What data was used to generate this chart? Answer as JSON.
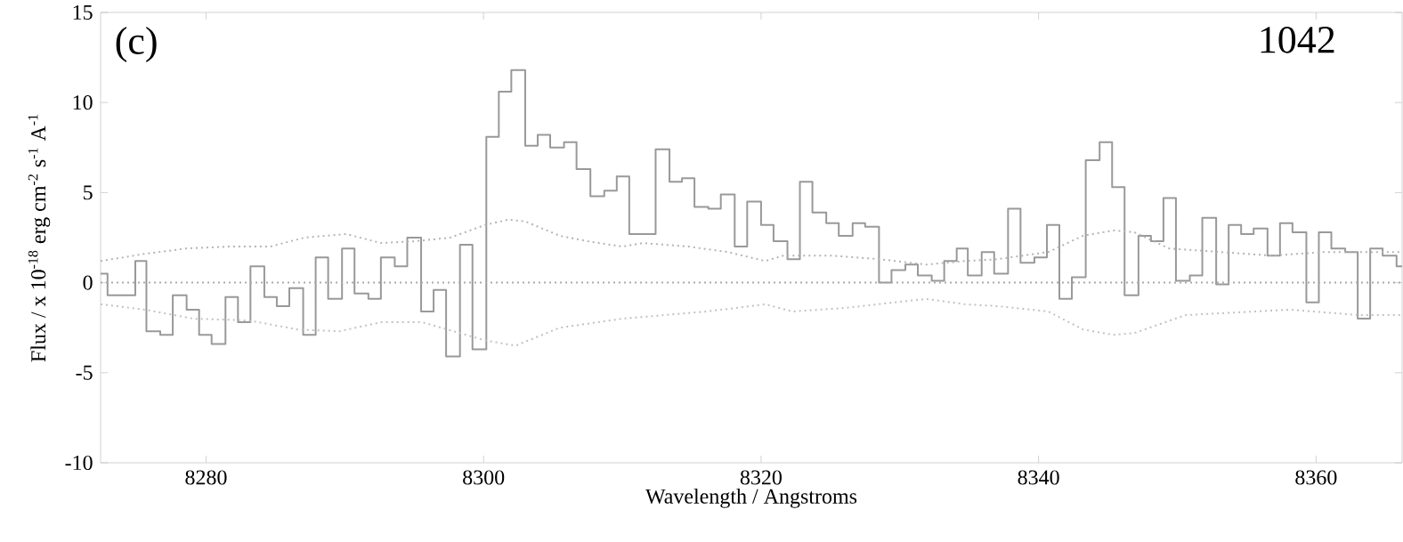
{
  "chart_data": {
    "type": "step",
    "xlabel": "Wavelength / Angstroms",
    "ylabel": "Flux / x 10$^{-18}$ erg cm$^{-2}$ s$^{-1}$ A$^{-1}$",
    "annotations": [
      "(c)",
      "1042"
    ],
    "xlim": [
      8272.4,
      8366.2
    ],
    "ylim": [
      -10,
      15
    ],
    "xticks": [
      8280,
      8300,
      8320,
      8340,
      8360
    ],
    "yticks": [
      -10,
      -5,
      0,
      5,
      10,
      15
    ],
    "ref_lines": [
      {
        "axis": "y",
        "value": 0,
        "color": "#aaaaaa",
        "line_style": "dotted"
      }
    ],
    "series": [
      {
        "color": "#999999",
        "line_style": "solid",
        "x": [
          8272.4,
          8272.9,
          8274.9,
          8275.7,
          8276.7,
          8277.6,
          8278.6,
          8279.5,
          8280.4,
          8281.4,
          8282.3,
          8283.2,
          8284.2,
          8285.1,
          8286.0,
          8287.0,
          8287.9,
          8288.8,
          8289.8,
          8290.7,
          8291.7,
          8292.6,
          8293.6,
          8294.5,
          8295.5,
          8296.4,
          8297.3,
          8298.3,
          8299.2,
          8300.2,
          8301.1,
          8302.0,
          8303.0,
          8303.9,
          8304.8,
          8305.8,
          8306.7,
          8307.7,
          8308.7,
          8309.6,
          8310.5,
          8311.5,
          8312.4,
          8313.4,
          8314.3,
          8315.2,
          8316.2,
          8317.1,
          8318.1,
          8319.0,
          8320.0,
          8320.9,
          8321.9,
          8322.8,
          8323.7,
          8324.7,
          8325.6,
          8326.6,
          8327.5,
          8328.5,
          8329.4,
          8330.4,
          8331.3,
          8332.3,
          8333.2,
          8334.1,
          8334.9,
          8335.9,
          8336.8,
          8337.8,
          8338.7,
          8339.7,
          8340.6,
          8341.5,
          8342.4,
          8343.4,
          8344.4,
          8345.3,
          8346.2,
          8347.2,
          8348.1,
          8349.0,
          8349.9,
          8350.9,
          8351.8,
          8352.8,
          8353.7,
          8354.6,
          8355.5,
          8356.5,
          8357.4,
          8358.3,
          8359.3,
          8360.2,
          8361.1,
          8362.1,
          8363.0,
          8363.9,
          8364.8,
          8365.8
        ],
        "values": [
          0.5,
          -0.7,
          1.2,
          -2.7,
          -2.9,
          -0.7,
          -1.5,
          -2.9,
          -3.4,
          -0.8,
          -2.2,
          0.9,
          -0.8,
          -1.3,
          -0.3,
          -2.9,
          1.4,
          -0.9,
          1.9,
          -0.6,
          -0.9,
          1.4,
          0.9,
          2.5,
          -1.6,
          -0.4,
          -4.1,
          2.1,
          -3.7,
          8.1,
          10.6,
          11.8,
          7.6,
          8.2,
          7.5,
          7.8,
          6.3,
          4.8,
          5.1,
          5.9,
          2.7,
          2.7,
          7.4,
          5.6,
          5.8,
          4.2,
          4.1,
          4.9,
          2.0,
          4.5,
          3.2,
          2.3,
          1.3,
          5.6,
          3.9,
          3.3,
          2.6,
          3.3,
          3.1,
          0.0,
          0.7,
          1.0,
          0.4,
          0.1,
          1.2,
          1.9,
          0.4,
          1.7,
          0.5,
          4.1,
          1.1,
          1.4,
          3.2,
          -0.9,
          0.3,
          6.8,
          7.8,
          5.3,
          -0.7,
          2.6,
          2.3,
          4.7,
          0.1,
          0.4,
          3.6,
          -0.1,
          3.2,
          2.7,
          3.0,
          1.5,
          3.3,
          2.8,
          -1.1,
          2.8,
          1.9,
          1.7,
          -2.0,
          1.9,
          1.5,
          0.9
        ]
      },
      {
        "type": "line",
        "color": "#b4b4b4",
        "line_style": "dotted",
        "x": [
          8272.4,
          8275.6,
          8278.6,
          8281.6,
          8284.6,
          8287.1,
          8290.1,
          8292.6,
          8295.1,
          8297.6,
          8300.1,
          8301.8,
          8303.0,
          8305.5,
          8307.5,
          8310.0,
          8311.5,
          8314.8,
          8317.6,
          8320.3,
          8321.6,
          8325.1,
          8328.6,
          8331.9,
          8334.7,
          8337.0,
          8340.7,
          8343.2,
          8345.4,
          8346.9,
          8349.4,
          8353.1,
          8356.8,
          8360.6,
          8366.2
        ],
        "values": [
          1.2,
          1.6,
          1.9,
          2.0,
          2.0,
          2.5,
          2.7,
          2.2,
          2.3,
          2.5,
          3.2,
          3.5,
          3.4,
          2.6,
          2.3,
          2.0,
          2.2,
          2.0,
          1.7,
          1.2,
          1.5,
          1.5,
          1.3,
          1.0,
          1.2,
          1.3,
          1.7,
          2.6,
          2.9,
          2.8,
          1.9,
          1.7,
          1.5,
          1.7,
          1.7
        ]
      },
      {
        "type": "line",
        "color": "#c2c2c2",
        "line_style": "dotted",
        "x": [
          8272.4,
          8275.6,
          8279.1,
          8283.1,
          8286.6,
          8289.6,
          8292.6,
          8295.6,
          8298.3,
          8300.1,
          8302.3,
          8305.5,
          8310.0,
          8316.1,
          8320.3,
          8322.3,
          8326.1,
          8331.9,
          8334.7,
          8337.0,
          8340.7,
          8343.2,
          8345.4,
          8346.9,
          8350.6,
          8358.1,
          8363.1,
          8366.2
        ],
        "values": [
          -1.2,
          -1.5,
          -2.0,
          -2.1,
          -2.6,
          -2.7,
          -2.2,
          -2.2,
          -2.8,
          -3.2,
          -3.5,
          -2.5,
          -2.0,
          -1.6,
          -1.2,
          -1.6,
          -1.4,
          -0.9,
          -1.2,
          -1.3,
          -1.6,
          -2.6,
          -2.9,
          -2.8,
          -1.8,
          -1.5,
          -1.8,
          -1.8
        ]
      }
    ]
  }
}
